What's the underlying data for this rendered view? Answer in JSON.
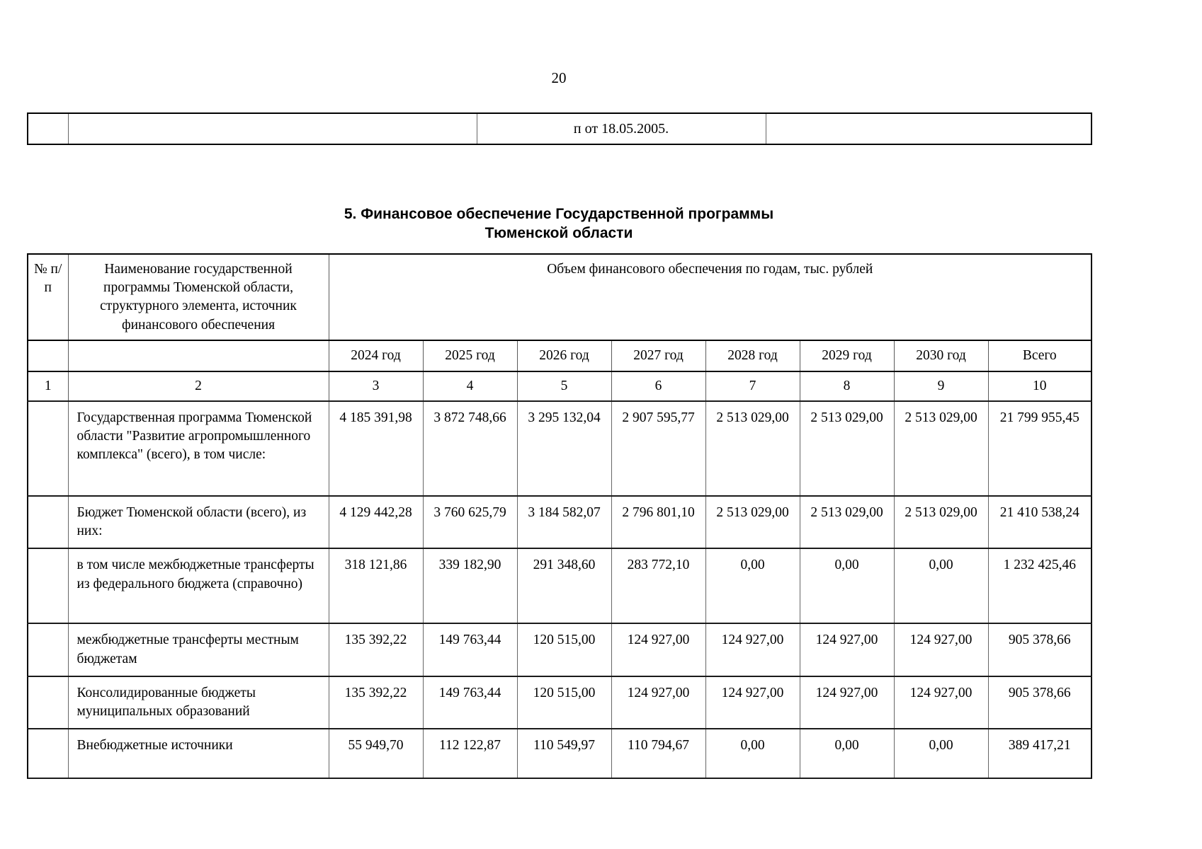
{
  "page": {
    "number": "20"
  },
  "fragment_table": {
    "cells": [
      "",
      "",
      "п от 18.05.2005.",
      ""
    ]
  },
  "title": {
    "line1": "5. Финансовое обеспечение Государственной программы",
    "line2": "Тюменской области"
  },
  "finance_table": {
    "header": {
      "col_num": "№ п/п",
      "col_name": "Наименование государственной программы Тюменской области, структурного элемента, источник финансового обеспечения",
      "col_group": "Объем финансового обеспечения по годам, тыс. рублей",
      "years": [
        "2024 год",
        "2025 год",
        "2026 год",
        "2027 год",
        "2028 год",
        "2029 год",
        "2030 год",
        "Всего"
      ],
      "column_numbers": [
        "1",
        "2",
        "3",
        "4",
        "5",
        "6",
        "7",
        "8",
        "9",
        "10"
      ]
    },
    "rows": [
      {
        "num": "",
        "name": "Государственная программа Тюменской области \"Развитие агропромышленного комплекса\" (всего), в том числе:",
        "values": [
          "4 185 391,98",
          "3 872 748,66",
          "3 295 132,04",
          "2 907 595,77",
          "2 513 029,00",
          "2 513 029,00",
          "2 513 029,00",
          "21 799 955,45"
        ]
      },
      {
        "num": "",
        "name": "Бюджет Тюменской области (всего), из них:",
        "values": [
          "4 129 442,28",
          "3 760 625,79",
          "3 184 582,07",
          "2 796 801,10",
          "2 513 029,00",
          "2 513 029,00",
          "2 513 029,00",
          "21 410 538,24"
        ]
      },
      {
        "num": "",
        "name": "в том числе межбюджетные трансферты из федерального бюджета (справочно)",
        "values": [
          "318 121,86",
          "339 182,90",
          "291 348,60",
          "283 772,10",
          "0,00",
          "0,00",
          "0,00",
          "1 232 425,46"
        ]
      },
      {
        "num": "",
        "name": "межбюджетные трансферты местным бюджетам",
        "values": [
          "135 392,22",
          "149 763,44",
          "120 515,00",
          "124 927,00",
          "124 927,00",
          "124 927,00",
          "124 927,00",
          "905 378,66"
        ]
      },
      {
        "num": "",
        "name": "Консолидированные бюджеты муниципальных образований",
        "values": [
          "135 392,22",
          "149 763,44",
          "120 515,00",
          "124 927,00",
          "124 927,00",
          "124 927,00",
          "124 927,00",
          "905 378,66"
        ]
      },
      {
        "num": "",
        "name": "Внебюджетные источники",
        "values": [
          "55 949,70",
          "112 122,87",
          "110 549,97",
          "110 794,67",
          "0,00",
          "0,00",
          "0,00",
          "389 417,21"
        ]
      }
    ]
  }
}
